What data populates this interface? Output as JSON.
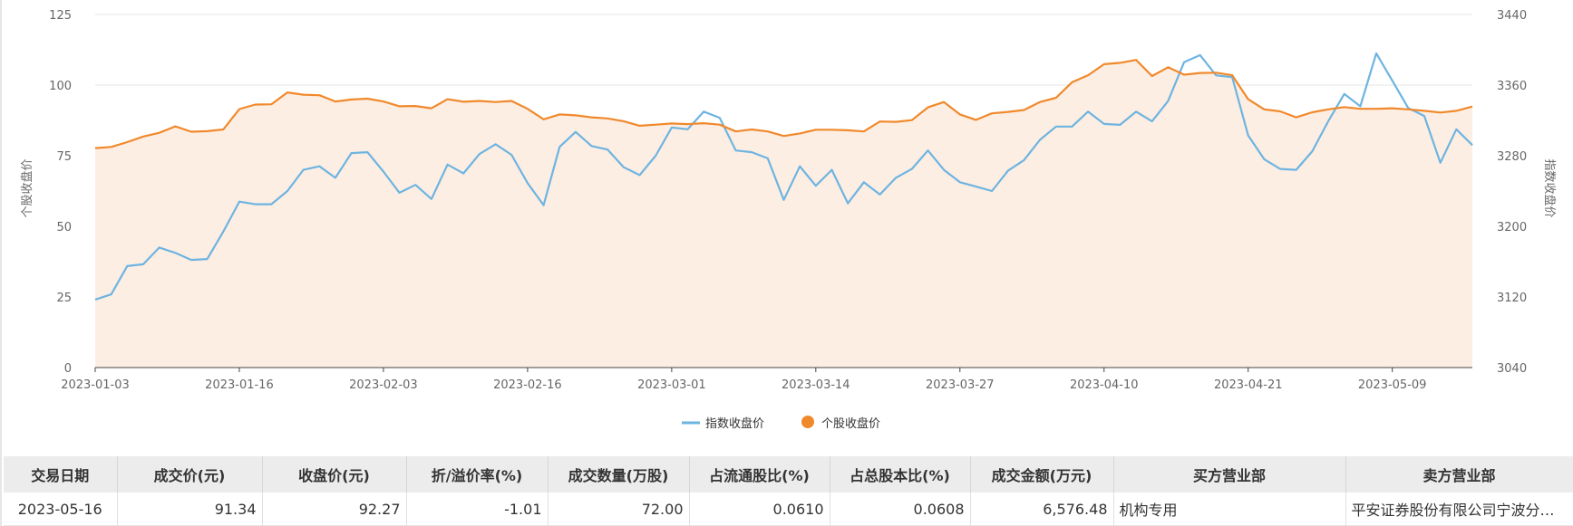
{
  "chart_data": {
    "type": "line",
    "y_left_label": "个股收盘价",
    "y_right_label": "指数收盘价",
    "y_left_range": [
      0,
      125
    ],
    "y_left_ticks": [
      0,
      25,
      50,
      75,
      100,
      125
    ],
    "y_right_range": [
      3040,
      3440
    ],
    "y_right_ticks": [
      3040,
      3120,
      3200,
      3280,
      3360,
      3440
    ],
    "x_tick_labels": [
      "2023-01-03",
      "2023-01-16",
      "2023-02-03",
      "2023-02-16",
      "2023-03-01",
      "2023-03-14",
      "2023-03-27",
      "2023-04-10",
      "2023-04-21",
      "2023-05-09"
    ],
    "x_tick_indices": [
      0,
      9,
      18,
      27,
      36,
      45,
      54,
      63,
      72,
      81
    ],
    "point_count": 87,
    "grid": "horizontal",
    "legend_position": "bottom",
    "series": [
      {
        "name": "指数收盘价",
        "axis": "right",
        "color": "#6eb4e1",
        "values": [
          3117,
          3123,
          3155,
          3157,
          3176,
          3170,
          3162,
          3163,
          3194,
          3228,
          3225,
          3225,
          3240,
          3264,
          3268,
          3255,
          3283,
          3284,
          3262,
          3238,
          3247,
          3231,
          3270,
          3260,
          3282,
          3293,
          3281,
          3249,
          3224,
          3290,
          3307,
          3291,
          3287,
          3267,
          3258,
          3280,
          3312,
          3310,
          3330,
          3323,
          3286,
          3284,
          3277,
          3230,
          3268,
          3246,
          3264,
          3226,
          3250,
          3236,
          3255,
          3265,
          3286,
          3264,
          3250,
          3245,
          3240,
          3263,
          3275,
          3298,
          3313,
          3313,
          3330,
          3316,
          3315,
          3330,
          3319,
          3342,
          3386,
          3394,
          3371,
          3369,
          3303,
          3276,
          3265,
          3264,
          3285,
          3319,
          3350,
          3336,
          3396,
          3365,
          3334,
          3325,
          3272,
          3310,
          3292
        ]
      },
      {
        "name": "个股收盘价",
        "axis": "left",
        "color": "#f0892c",
        "values": [
          77.7,
          78.1,
          79.8,
          81.8,
          83.1,
          85.4,
          83.5,
          83.7,
          84.3,
          91.5,
          93.1,
          93.2,
          97.4,
          96.6,
          96.4,
          94.2,
          94.9,
          95.2,
          94.2,
          92.5,
          92.6,
          91.8,
          95.0,
          94.1,
          94.4,
          94.0,
          94.4,
          91.6,
          87.9,
          89.6,
          89.3,
          88.6,
          88.2,
          87.2,
          85.6,
          86.0,
          86.4,
          86.2,
          86.5,
          86.0,
          83.6,
          84.3,
          83.6,
          82.0,
          82.9,
          84.2,
          84.2,
          84.0,
          83.6,
          87.1,
          87.0,
          87.6,
          92.1,
          94.0,
          89.6,
          87.7,
          90.0,
          90.5,
          91.2,
          94.0,
          95.5,
          101.0,
          103.5,
          107.4,
          107.9,
          108.9,
          103.2,
          106.3,
          103.7,
          104.3,
          104.4,
          103.5,
          95.0,
          91.4,
          90.7,
          88.6,
          90.4,
          91.4,
          92.2,
          91.6,
          91.6,
          91.8,
          91.4,
          90.9,
          90.3,
          90.9,
          92.4
        ]
      }
    ]
  },
  "legend": {
    "index_label": "指数收盘价",
    "stock_label": "个股收盘价"
  },
  "table": {
    "headers": [
      "交易日期",
      "成交价(元)",
      "收盘价(元)",
      "折/溢价率(%)",
      "成交数量(万股)",
      "占流通股比(%)",
      "占总股本比(%)",
      "成交金额(万元)",
      "买方营业部",
      "卖方营业部"
    ],
    "rows": [
      [
        "2023-05-16",
        "91.34",
        "92.27",
        "-1.01",
        "72.00",
        "0.0610",
        "0.0608",
        "6,576.48",
        "机构专用",
        "平安证券股份有限公司宁波分公司"
      ]
    ]
  },
  "colors": {
    "index_line": "#6eb4e1",
    "stock_line": "#f0892c",
    "area_fill": "#fdeee3",
    "grid": "#e6e6e6"
  }
}
